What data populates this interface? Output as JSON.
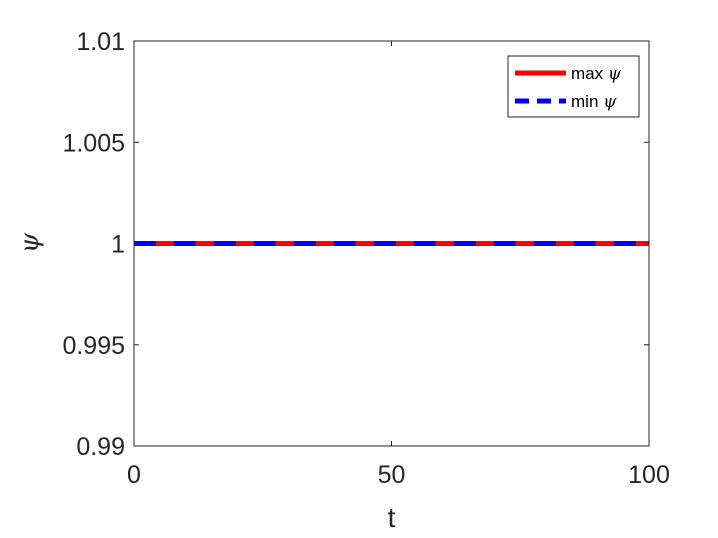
{
  "chart_data": {
    "type": "line",
    "xlabel": "t",
    "ylabel": "ψ",
    "xlim": [
      0,
      100
    ],
    "ylim": [
      0.99,
      1.01
    ],
    "xticks": [
      0,
      50,
      100
    ],
    "xtick_labels": [
      "0",
      "50",
      "100"
    ],
    "yticks": [
      0.99,
      0.995,
      1,
      1.005,
      1.01
    ],
    "ytick_labels": [
      "0.99",
      "0.995",
      "1",
      "1.005",
      "1.01"
    ],
    "grid": false,
    "legend_position": "top-right",
    "series": [
      {
        "name": "max ψ",
        "name_text": "max",
        "name_symbol": "ψ",
        "color": "#ff0000",
        "style": "solid",
        "x": [
          0,
          100
        ],
        "y": [
          1,
          1
        ]
      },
      {
        "name": "min ψ",
        "name_text": "min",
        "name_symbol": "ψ",
        "color": "#0000ff",
        "style": "dashed",
        "x": [
          0,
          100
        ],
        "y": [
          1,
          1
        ]
      }
    ]
  }
}
